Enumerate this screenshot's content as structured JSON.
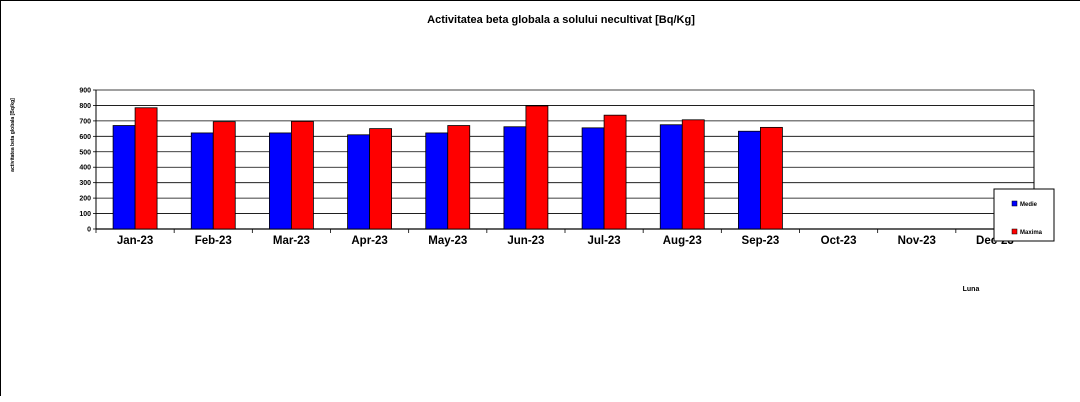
{
  "chart_data": {
    "type": "bar",
    "title": "Activitatea beta globala a solului necultivat [Bq/Kg]",
    "xlabel": "Luna",
    "ylabel": "activitatea beta globala [Bq/kg]",
    "categories": [
      "Jan-23",
      "Feb-23",
      "Mar-23",
      "Apr-23",
      "May-23",
      "Jun-23",
      "Jul-23",
      "Aug-23",
      "Sep-23",
      "Oct-23",
      "Nov-23",
      "Dec-23"
    ],
    "series": [
      {
        "name": "Medie",
        "color": "#0000ff",
        "values": [
          670,
          622,
          622,
          610,
          622,
          662,
          655,
          675,
          633,
          null,
          null,
          null
        ]
      },
      {
        "name": "Maxima",
        "color": "#ff0000",
        "values": [
          785,
          695,
          697,
          650,
          670,
          797,
          737,
          707,
          658,
          null,
          null,
          null
        ]
      }
    ],
    "ylim": [
      0,
      900
    ],
    "yticks": [
      0,
      100,
      200,
      300,
      400,
      500,
      600,
      700,
      800,
      900
    ],
    "grid": true,
    "legend_position": "right"
  }
}
